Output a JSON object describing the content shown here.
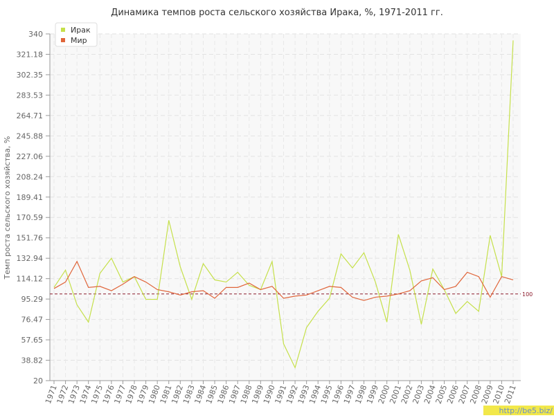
{
  "chart_data": {
    "type": "line",
    "title": "Динамика темпов роста сельского хозяйства Ирака, %, 1971-2011 гг.",
    "y_label": "Темп роста сельского хозяйства, %",
    "categories": [
      "1971",
      "1972",
      "1973",
      "1974",
      "1975",
      "1976",
      "1977",
      "1978",
      "1979",
      "1980",
      "1981",
      "1982",
      "1983",
      "1984",
      "1985",
      "1986",
      "1987",
      "1988",
      "1989",
      "1990",
      "1991",
      "1992",
      "1993",
      "1994",
      "1995",
      "1996",
      "1997",
      "1998",
      "1999",
      "2000",
      "2001",
      "2002",
      "2003",
      "2004",
      "2005",
      "2006",
      "2007",
      "2008",
      "2009",
      "2010",
      "2011"
    ],
    "series": [
      {
        "name": "Ирак",
        "color": "#c5e04a",
        "values": [
          106,
          122,
          90,
          74,
          119,
          133,
          111,
          116,
          95,
          95,
          168,
          125,
          95,
          128,
          113,
          111,
          120,
          108,
          104,
          130,
          54,
          32,
          69,
          84,
          96,
          137,
          124,
          138,
          111,
          74,
          155,
          122,
          72,
          123,
          104,
          82,
          93,
          84,
          154,
          116,
          334
        ]
      },
      {
        "name": "Мир",
        "color": "#e0653a",
        "values": [
          105,
          111,
          130,
          106,
          107,
          103,
          109,
          116,
          111,
          104,
          102,
          99,
          102,
          103,
          96,
          106,
          106,
          110,
          104,
          107,
          96,
          98,
          99,
          103,
          107,
          106,
          97,
          94,
          97,
          98,
          100,
          103,
          112,
          115,
          104,
          107,
          120,
          116,
          97,
          116,
          113
        ]
      }
    ],
    "ylim": [
      20,
      340
    ],
    "yticks": [
      20,
      38.82,
      57.65,
      76.47,
      95.29,
      114.12,
      132.94,
      151.76,
      170.59,
      189.41,
      208.24,
      227.06,
      245.88,
      264.71,
      283.53,
      302.35,
      321.18,
      340
    ],
    "grid": true,
    "reference_line": 100,
    "reference_color": "#8b1a2b",
    "legend": "top-left",
    "watermark": "http://be5.biz/"
  }
}
